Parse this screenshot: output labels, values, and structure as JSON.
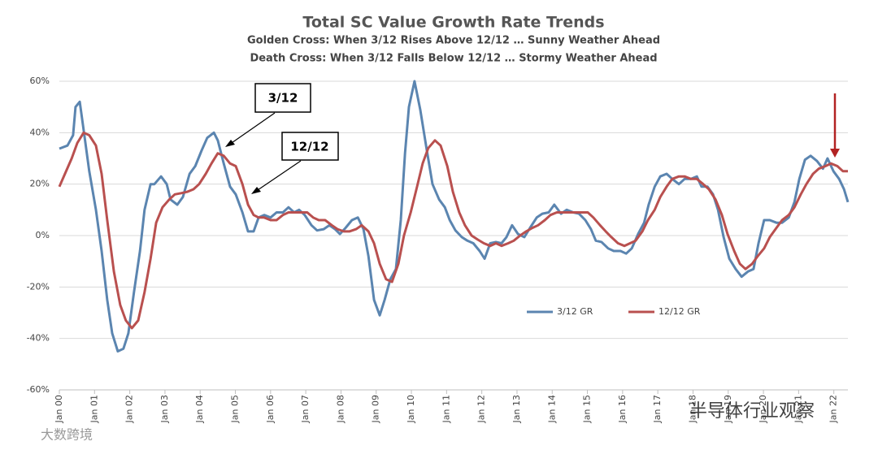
{
  "chart_data": {
    "type": "line",
    "title": "Total SC Value Growth Rate Trends",
    "subtitle": "Golden Cross: When 3/12 Rises  Above 12/12 … Sunny Weather Ahead",
    "subtitle2": "Death Cross: When 3/12 Falls Below 12/12 … Stormy Weather Ahead",
    "annotations": [
      "3/12",
      "12/12"
    ],
    "watermarks": [
      "半导体行业观察",
      "大数跨境"
    ],
    "xlim": [
      2000,
      2022.4
    ],
    "xticks": [
      {
        "value": 2000,
        "label": "Jan 00"
      },
      {
        "value": 2001,
        "label": "Jan 01"
      },
      {
        "value": 2002,
        "label": "Jan 02"
      },
      {
        "value": 2003,
        "label": "Jan 03"
      },
      {
        "value": 2004,
        "label": "Jan 04"
      },
      {
        "value": 2005,
        "label": "Jan 05"
      },
      {
        "value": 2006,
        "label": "Jan 06"
      },
      {
        "value": 2007,
        "label": "Jan 07"
      },
      {
        "value": 2008,
        "label": "Jan 08"
      },
      {
        "value": 2009,
        "label": "Jan 09"
      },
      {
        "value": 2010,
        "label": "Jan 10"
      },
      {
        "value": 2011,
        "label": "Jan 11"
      },
      {
        "value": 2012,
        "label": "Jan 12"
      },
      {
        "value": 2013,
        "label": "Jan 13"
      },
      {
        "value": 2014,
        "label": "Jan 14"
      },
      {
        "value": 2015,
        "label": "Jan 15"
      },
      {
        "value": 2016,
        "label": "Jan 16"
      },
      {
        "value": 2017,
        "label": "Jan 17"
      },
      {
        "value": 2018,
        "label": "Jan 18"
      },
      {
        "value": 2019,
        "label": "Jan 19"
      },
      {
        "value": 2020,
        "label": "Jan 20"
      },
      {
        "value": 2021,
        "label": "Jan 21"
      },
      {
        "value": 2022,
        "label": "Jan 22"
      }
    ],
    "ylim": [
      -60,
      60
    ],
    "yticks": [
      {
        "value": -60,
        "label": "-60%"
      },
      {
        "value": -40,
        "label": "-40%"
      },
      {
        "value": -20,
        "label": "-20%"
      },
      {
        "value": 0,
        "label": "0%"
      },
      {
        "value": 20,
        "label": "20%"
      },
      {
        "value": 40,
        "label": "40%"
      },
      {
        "value": 60,
        "label": "60%"
      }
    ],
    "grid": true,
    "legend": "bottom-right",
    "series": [
      {
        "name": "3/12 GR",
        "color": "#5b85b0",
        "x": [
          2000,
          2000.23,
          2000.39,
          2000.46,
          2000.58,
          2000.69,
          2000.85,
          2001.04,
          2001.2,
          2001.36,
          2001.5,
          2001.66,
          2001.82,
          2001.96,
          2002.12,
          2002.29,
          2002.42,
          2002.59,
          2002.7,
          2002.89,
          2003.05,
          2003.16,
          2003.35,
          2003.51,
          2003.7,
          2003.86,
          2004.04,
          2004.2,
          2004.39,
          2004.5,
          2004.67,
          2004.85,
          2005.01,
          2005.2,
          2005.36,
          2005.52,
          2005.66,
          2005.82,
          2006,
          2006.17,
          2006.35,
          2006.51,
          2006.67,
          2006.81,
          2006.97,
          2007.16,
          2007.32,
          2007.51,
          2007.67,
          2007.83,
          2007.97,
          2008.13,
          2008.31,
          2008.48,
          2008.64,
          2008.78,
          2008.94,
          2009.1,
          2009.24,
          2009.4,
          2009.56,
          2009.7,
          2009.82,
          2009.93,
          2010.09,
          2010.25,
          2010.44,
          2010.6,
          2010.79,
          2010.95,
          2011.09,
          2011.25,
          2011.43,
          2011.59,
          2011.76,
          2011.94,
          2012.08,
          2012.24,
          2012.4,
          2012.56,
          2012.7,
          2012.86,
          2013.03,
          2013.21,
          2013.37,
          2013.56,
          2013.72,
          2013.9,
          2014.06,
          2014.25,
          2014.41,
          2014.6,
          2014.76,
          2014.94,
          2015.1,
          2015.24,
          2015.4,
          2015.59,
          2015.75,
          2015.94,
          2016.1,
          2016.26,
          2016.44,
          2016.61,
          2016.74,
          2016.91,
          2017.07,
          2017.25,
          2017.41,
          2017.6,
          2017.76,
          2017.94,
          2018.11,
          2018.24,
          2018.41,
          2018.57,
          2018.71,
          2018.87,
          2019.03,
          2019.21,
          2019.38,
          2019.56,
          2019.72,
          2019.86,
          2020.02,
          2020.18,
          2020.37,
          2020.53,
          2020.72,
          2020.88,
          2021.02,
          2021.18,
          2021.34,
          2021.52,
          2021.69,
          2021.82,
          2021.99,
          2022.15,
          2022.29,
          2022.4
        ],
        "values": [
          33.8,
          35,
          39,
          50,
          52,
          41,
          25,
          10,
          -6,
          -25,
          -38,
          -45,
          -44,
          -38,
          -22,
          -6,
          10,
          20,
          20,
          23,
          20,
          14,
          12,
          15,
          24,
          27,
          33,
          38,
          40,
          37,
          28,
          19,
          16,
          9,
          1.6,
          1.6,
          7,
          8,
          7,
          9,
          9,
          11,
          9,
          10,
          8,
          4,
          2,
          2.5,
          4,
          2.5,
          0.6,
          3,
          6,
          7,
          2.5,
          -8,
          -25,
          -31,
          -25,
          -17,
          -13,
          6,
          32,
          50,
          60,
          49,
          33,
          20,
          14,
          11,
          6,
          2,
          -0.6,
          -2,
          -3,
          -6,
          -9,
          -3,
          -2.5,
          -3,
          -0.6,
          4,
          0.6,
          -0.6,
          3,
          7,
          8.5,
          9,
          12,
          8.5,
          10,
          9,
          8.5,
          6,
          2.5,
          -2,
          -2.5,
          -5,
          -6,
          -6,
          -7,
          -5,
          0.6,
          5,
          12,
          19,
          23,
          24,
          22,
          20,
          22,
          22,
          23,
          19,
          19,
          16,
          10,
          -0.6,
          -9,
          -13,
          -16,
          -14,
          -13,
          -3,
          6,
          6,
          5,
          5,
          7,
          13,
          22,
          29.5,
          31,
          29,
          26,
          30,
          25,
          22,
          18,
          13
        ]
      },
      {
        "name": "12/12 GR",
        "color": "#b9504f",
        "x": [
          2000,
          2000.16,
          2000.35,
          2000.51,
          2000.69,
          2000.85,
          2001.04,
          2001.2,
          2001.36,
          2001.55,
          2001.73,
          2001.89,
          2002.06,
          2002.24,
          2002.42,
          2002.59,
          2002.75,
          2002.93,
          2003.12,
          2003.28,
          2003.46,
          2003.63,
          2003.81,
          2003.97,
          2004.16,
          2004.32,
          2004.5,
          2004.67,
          2004.85,
          2005.01,
          2005.2,
          2005.36,
          2005.52,
          2005.66,
          2005.82,
          2006,
          2006.17,
          2006.35,
          2006.51,
          2006.67,
          2006.86,
          2007.04,
          2007.21,
          2007.37,
          2007.55,
          2007.74,
          2007.9,
          2008.08,
          2008.24,
          2008.43,
          2008.59,
          2008.78,
          2008.94,
          2009.1,
          2009.28,
          2009.45,
          2009.63,
          2009.79,
          2009.98,
          2010.16,
          2010.32,
          2010.48,
          2010.67,
          2010.83,
          2011.02,
          2011.18,
          2011.36,
          2011.52,
          2011.71,
          2011.89,
          2012.06,
          2012.24,
          2012.4,
          2012.56,
          2012.75,
          2012.91,
          2013.09,
          2013.26,
          2013.44,
          2013.6,
          2013.79,
          2013.95,
          2014.13,
          2014.29,
          2014.48,
          2014.67,
          2014.83,
          2015.01,
          2015.17,
          2015.36,
          2015.52,
          2015.68,
          2015.87,
          2016.05,
          2016.21,
          2016.37,
          2016.56,
          2016.72,
          2016.91,
          2017.07,
          2017.25,
          2017.41,
          2017.6,
          2017.76,
          2017.94,
          2018.11,
          2018.29,
          2018.45,
          2018.64,
          2018.82,
          2018.98,
          2019.17,
          2019.33,
          2019.49,
          2019.68,
          2019.84,
          2020.02,
          2020.18,
          2020.37,
          2020.53,
          2020.72,
          2020.88,
          2021.06,
          2021.22,
          2021.41,
          2021.57,
          2021.76,
          2021.92,
          2022.1,
          2022.26,
          2022.4
        ],
        "values": [
          19,
          24,
          30,
          36,
          40,
          39,
          35,
          24,
          6,
          -14,
          -27,
          -33,
          -36,
          -33,
          -22,
          -9,
          5,
          11,
          14,
          16,
          16.5,
          17,
          18,
          20,
          24,
          28,
          32,
          31,
          28,
          27,
          20,
          12,
          8,
          7,
          7,
          6,
          6,
          8,
          9,
          9,
          9,
          9,
          7,
          6,
          6,
          4,
          2.5,
          1.6,
          1.6,
          2.5,
          4,
          1.6,
          -3,
          -11,
          -17,
          -18,
          -11,
          0,
          9,
          19,
          28,
          34,
          37,
          35,
          27,
          17,
          9,
          4,
          0,
          -1.6,
          -3,
          -4,
          -3,
          -4,
          -3,
          -2,
          0,
          1.6,
          3,
          4,
          6,
          8,
          9,
          9,
          9,
          9,
          9,
          9,
          7,
          4,
          1.6,
          -0.6,
          -3,
          -4,
          -3,
          -2,
          1.6,
          6,
          10,
          15,
          19,
          22,
          23,
          23,
          22,
          22,
          20,
          18,
          14,
          8,
          0.6,
          -6,
          -11,
          -13,
          -11,
          -8,
          -5,
          -0.6,
          3,
          6,
          8,
          11,
          16,
          20,
          24,
          26,
          27,
          28,
          27,
          25,
          25
        ]
      }
    ]
  }
}
